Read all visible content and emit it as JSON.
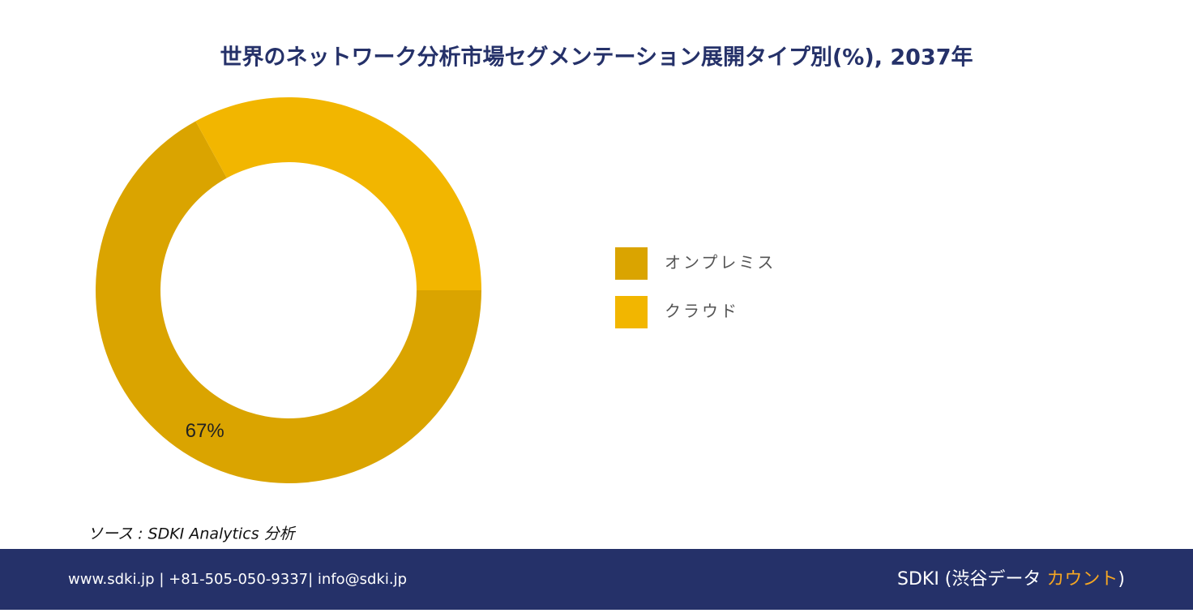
{
  "chart_data": {
    "type": "donut",
    "title": "世界のネットワーク分析市場セグメンテーション展開タイプ別(%), 2037年",
    "categories": [
      "オンプレミス",
      "クラウド"
    ],
    "values": [
      67,
      33
    ],
    "value_labels": [
      "67%",
      null
    ],
    "colors": [
      "#DAA400",
      "#F2B600"
    ],
    "legend": "right"
  },
  "source": "ソース : SDKI Analytics 分析",
  "footer": {
    "contact": "www.sdki.jp | +81-505-050-9337| info@sdki.jp",
    "brand": "SDKI (渋谷データ",
    "brand_accent": "カウント",
    "brand_end": ")"
  }
}
